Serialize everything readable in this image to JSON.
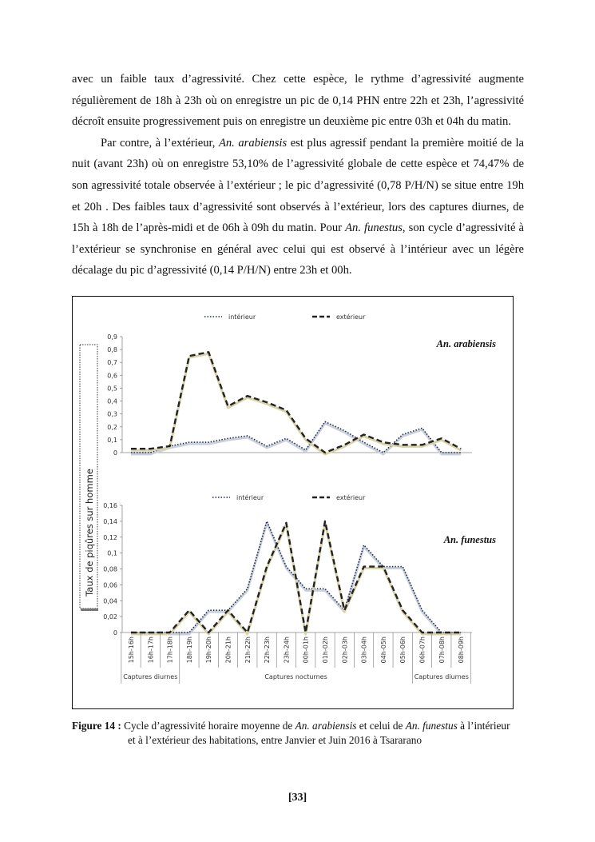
{
  "body": {
    "paragraph1": "avec un faible taux d’agressivité. Chez cette espèce, le rythme d’agressivité augmente régulièrement de 18h à 23h où on enregistre un pic de 0,14 PHN entre 22h et 23h, l’agressivité décroît ensuite progressivement puis on enregistre un deuxième pic entre 03h et 04h du matin.",
    "paragraph2": {
      "part1": "Par contre, à l’extérieur, ",
      "species1": "An. arabiensis",
      "part2": " est plus agressif pendant la première moitié de la nuit (avant 23h) où on enregistre 53,10% de l’agressivité globale de cette espèce et 74,47% de son agressivité totale observée à l’extérieur ; le pic d’agressivité (0,78 P/H/N) se situe entre 19h et 20h . Des faibles taux d’agressivité sont observés à l’extérieur, lors des captures diurnes, de 15h à 18h de l’après-midi et de 06h à 09h du matin. Pour ",
      "species2": "An. funestus",
      "part3": ", son cycle d’agressivité à l’extérieur se synchronise en général avec celui qui est observé à l’intérieur avec un légère décalage du pic d’agressivité (0,14 P/H/N) entre 23h et 00h."
    }
  },
  "figure": {
    "ylabel": "Taux de piqûres sur homme",
    "categories": [
      "15h-16h",
      "16h-17h",
      "17h-18h",
      "18h-19h",
      "19h-20h",
      "20h-21h",
      "21h-22h",
      "22h-23h",
      "23h-24h",
      "00h-01h",
      "01h-02h",
      "02h-03h",
      "03h-04h",
      "04h-05h",
      "05h-06h",
      "06h-07h",
      "07h-08h",
      "08h-09h"
    ],
    "groups": [
      {
        "label": "Captures diurnes",
        "from": 0,
        "to": 2
      },
      {
        "label": "Captures nocturnes",
        "from": 3,
        "to": 14
      },
      {
        "label": "Captures diurnes",
        "from": 15,
        "to": 17
      }
    ],
    "colors": {
      "interieur": "#1f2a4a",
      "interieur_shadow": "#c9cfdc",
      "exterieur": "#222222",
      "exterieur_shadow": "#d8d2a8"
    }
  },
  "chart_data": [
    {
      "type": "line",
      "title": "An. arabiensis",
      "legend_position": "top",
      "ylim": [
        0,
        0.9
      ],
      "yticks": [
        "0",
        "0,1",
        "0,2",
        "0,3",
        "0,4",
        "0,5",
        "0,6",
        "0,7",
        "0,8",
        "0,9"
      ],
      "series": [
        {
          "name": "intérieur",
          "style": "dotted",
          "values": [
            0,
            0,
            0.05,
            0.08,
            0.08,
            0.11,
            0.13,
            0.05,
            0.11,
            0.02,
            0.24,
            0.17,
            0.08,
            0,
            0.14,
            0.19,
            0,
            0
          ]
        },
        {
          "name": "extérieur",
          "style": "dashed",
          "values": [
            0.03,
            0.03,
            0.05,
            0.75,
            0.78,
            0.36,
            0.44,
            0.39,
            0.33,
            0.11,
            0,
            0.06,
            0.14,
            0.08,
            0.06,
            0.06,
            0.11,
            0.03
          ]
        }
      ]
    },
    {
      "type": "line",
      "title": "An. funestus",
      "legend_position": "top",
      "ylim": [
        0,
        0.16
      ],
      "yticks": [
        "0",
        "0,02",
        "0,04",
        "0,06",
        "0,08",
        "0,1",
        "0,12",
        "0,14",
        "0,16"
      ],
      "series": [
        {
          "name": "intérieur",
          "style": "dotted",
          "values": [
            0,
            0,
            0,
            0,
            0.028,
            0.028,
            0.055,
            0.14,
            0.083,
            0.055,
            0.055,
            0.028,
            0.11,
            0.083,
            0.083,
            0.028,
            0,
            0
          ]
        },
        {
          "name": "extérieur",
          "style": "dashed",
          "values": [
            0,
            0,
            0,
            0.028,
            0,
            0.028,
            0,
            0.083,
            0.138,
            0,
            0.14,
            0.028,
            0.083,
            0.083,
            0.028,
            0,
            0,
            0
          ]
        }
      ]
    }
  ],
  "caption": {
    "label": "Figure 14 :",
    "t1": " Cycle d’agressivité horaire moyenne de ",
    "sp1": "An. arabiensis",
    "t2": " et celui de ",
    "sp2": "An. funestus",
    "t3": " à l’intérieur",
    "line2": "et à l’extérieur des habitations, entre Janvier et Juin 2016 à Tsararano"
  },
  "page_number": "[33]"
}
